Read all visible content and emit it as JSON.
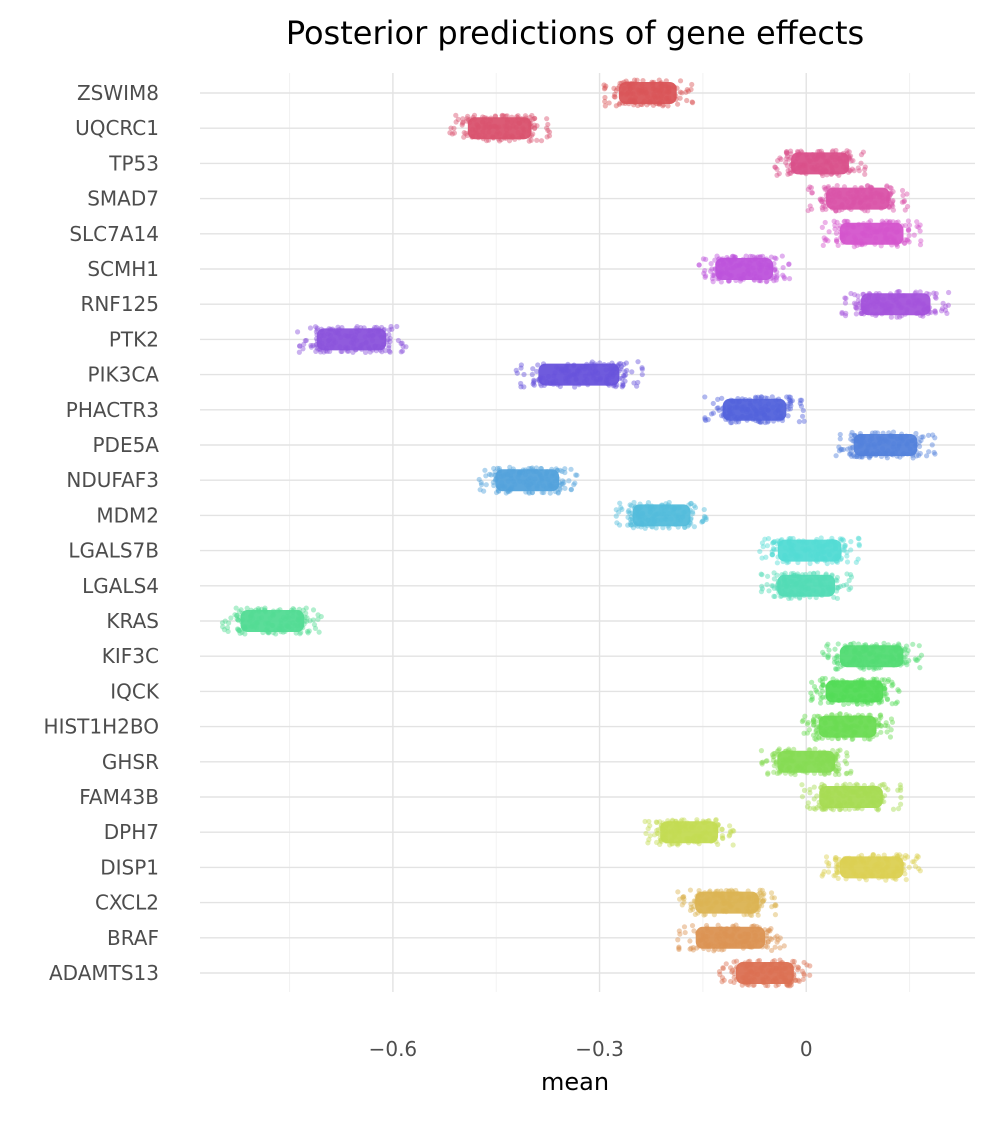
{
  "chart_data": {
    "type": "scatter",
    "title": "Posterior predictions of gene effects",
    "xlabel": "mean",
    "ylabel": "",
    "xlim": [
      -0.88,
      0.245
    ],
    "xticks": [
      -0.6,
      -0.3,
      0
    ],
    "xtick_labels": [
      "−0.6",
      "−0.3",
      "0"
    ],
    "grid": true,
    "legend": "none",
    "categories": [
      "ZSWIM8",
      "UQCRC1",
      "TP53",
      "SMAD7",
      "SLC7A14",
      "SCMH1",
      "RNF125",
      "PTK2",
      "PIK3CA",
      "PHACTR3",
      "PDE5A",
      "NDUFAF3",
      "MDM2",
      "LGALS7B",
      "LGALS4",
      "KRAS",
      "KIF3C",
      "IQCK",
      "HIST1H2BO",
      "GHSR",
      "FAM43B",
      "DPH7",
      "DISP1",
      "CXCL2",
      "BRAF",
      "ADAMTS13"
    ],
    "series": [
      {
        "gene": "ZSWIM8",
        "min": -0.28,
        "max": -0.18,
        "color": "#d95457"
      },
      {
        "gene": "UQCRC1",
        "min": -0.5,
        "max": -0.39,
        "color": "#d9526e"
      },
      {
        "gene": "TP53",
        "min": -0.03,
        "max": 0.07,
        "color": "#d9508a"
      },
      {
        "gene": "SMAD7",
        "min": 0.02,
        "max": 0.13,
        "color": "#d952a8"
      },
      {
        "gene": "SLC7A14",
        "min": 0.04,
        "max": 0.15,
        "color": "#d454cc"
      },
      {
        "gene": "SCMH1",
        "min": -0.14,
        "max": -0.04,
        "color": "#bd52db"
      },
      {
        "gene": "RNF125",
        "min": 0.07,
        "max": 0.19,
        "color": "#a352db"
      },
      {
        "gene": "PTK2",
        "min": -0.72,
        "max": -0.6,
        "color": "#8a52db"
      },
      {
        "gene": "PIK3CA",
        "min": -0.4,
        "max": -0.26,
        "color": "#6752db"
      },
      {
        "gene": "PHACTR3",
        "min": -0.13,
        "max": -0.02,
        "color": "#5262db"
      },
      {
        "gene": "PDE5A",
        "min": 0.06,
        "max": 0.17,
        "color": "#5281db"
      },
      {
        "gene": "NDUFAF3",
        "min": -0.46,
        "max": -0.35,
        "color": "#52a1db"
      },
      {
        "gene": "MDM2",
        "min": -0.26,
        "max": -0.16,
        "color": "#52bcdb"
      },
      {
        "gene": "LGALS7B",
        "min": -0.05,
        "max": 0.06,
        "color": "#52dbd4"
      },
      {
        "gene": "LGALS4",
        "min": -0.05,
        "max": 0.05,
        "color": "#52dbb5"
      },
      {
        "gene": "KRAS",
        "min": -0.83,
        "max": -0.72,
        "color": "#52db93"
      },
      {
        "gene": "KIF3C",
        "min": 0.04,
        "max": 0.15,
        "color": "#52db73"
      },
      {
        "gene": "IQCK",
        "min": 0.02,
        "max": 0.12,
        "color": "#52db56"
      },
      {
        "gene": "HIST1H2BO",
        "min": 0.01,
        "max": 0.11,
        "color": "#6adb52"
      },
      {
        "gene": "GHSR",
        "min": -0.05,
        "max": 0.05,
        "color": "#85db52"
      },
      {
        "gene": "FAM43B",
        "min": 0.01,
        "max": 0.12,
        "color": "#a6db52"
      },
      {
        "gene": "DPH7",
        "min": -0.22,
        "max": -0.12,
        "color": "#c3db52"
      },
      {
        "gene": "DISP1",
        "min": 0.04,
        "max": 0.15,
        "color": "#dbd052"
      },
      {
        "gene": "CXCL2",
        "min": -0.17,
        "max": -0.06,
        "color": "#dbb352"
      },
      {
        "gene": "BRAF",
        "min": -0.17,
        "max": -0.05,
        "color": "#db9252"
      },
      {
        "gene": "ADAMTS13",
        "min": -0.11,
        "max": -0.01,
        "color": "#db7052"
      }
    ]
  }
}
